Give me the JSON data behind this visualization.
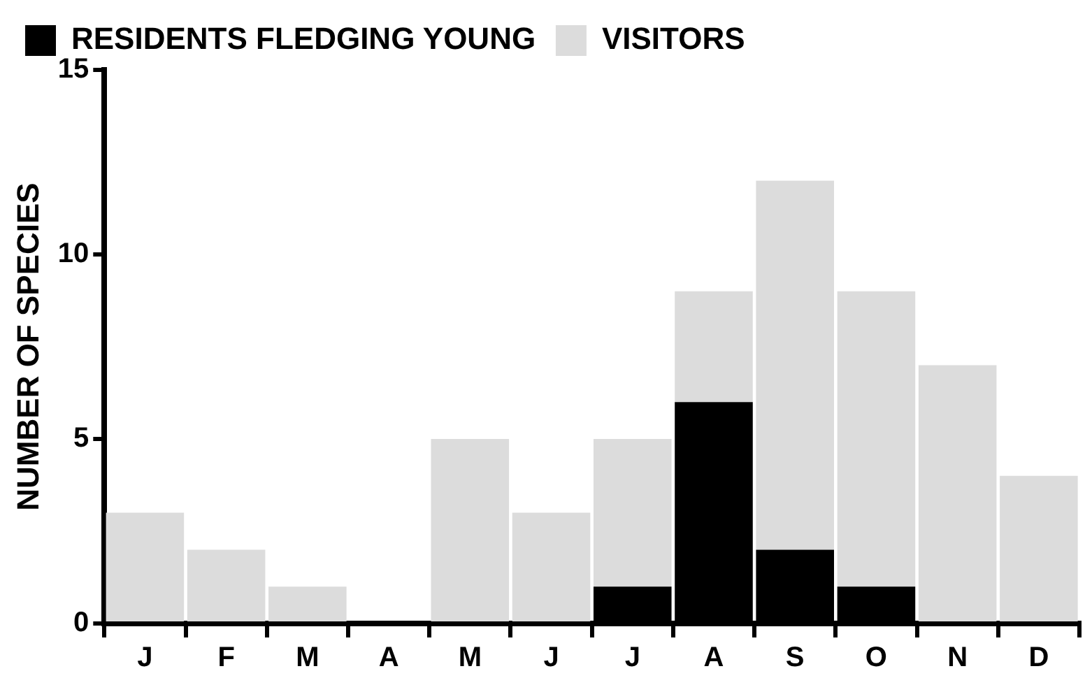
{
  "chart_data": {
    "type": "bar",
    "stacked": true,
    "ylabel": "NUMBER OF SPECIES",
    "categories": [
      "J",
      "F",
      "M",
      "A",
      "M",
      "J",
      "J",
      "A",
      "S",
      "O",
      "N",
      "D"
    ],
    "series": [
      {
        "name": "RESIDENTS FLEDGING YOUNG",
        "color": "#000000",
        "values": [
          0,
          0,
          0,
          0,
          0,
          0,
          1,
          6,
          2,
          1,
          0,
          0
        ]
      },
      {
        "name": "VISITORS",
        "color": "#dcdcdc",
        "values": [
          3,
          2,
          1,
          0,
          5,
          3,
          4,
          3,
          10,
          8,
          7,
          4
        ]
      }
    ],
    "ylim": [
      0,
      15
    ],
    "yticks": [
      0,
      5,
      10,
      15
    ],
    "grid": false,
    "legend": "top left"
  }
}
